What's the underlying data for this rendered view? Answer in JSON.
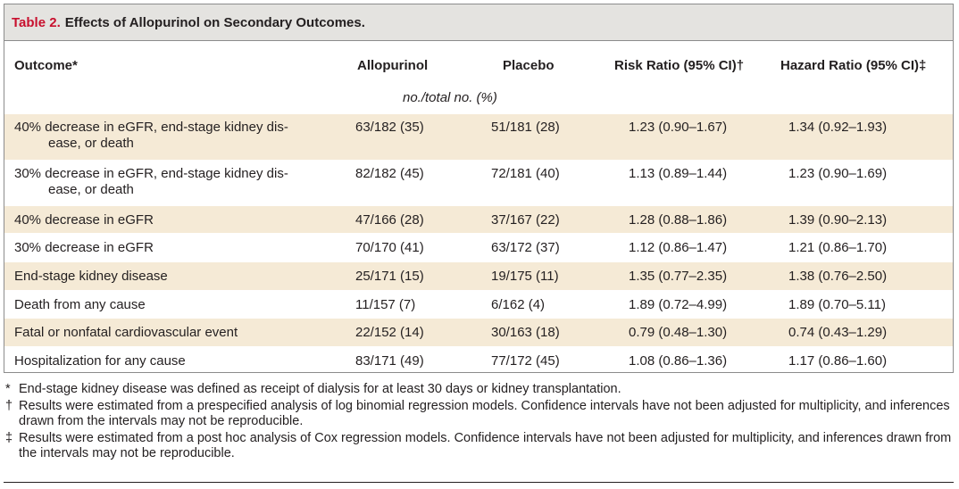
{
  "table": {
    "label": "Table 2.",
    "title": "Effects of Allopurinol on Secondary Outcomes.",
    "headers": {
      "outcome": "Outcome*",
      "allopurinol": "Allopurinol",
      "placebo": "Placebo",
      "risk_ratio": "Risk Ratio (95% CI)†",
      "hazard_ratio": "Hazard Ratio (95% CI)‡"
    },
    "units": "no./total no. (%)",
    "rows": [
      {
        "outcome_l1": "40% decrease in eGFR, end-stage kidney dis-",
        "outcome_l2": "ease, or death",
        "allopurinol": "63/182 (35)",
        "placebo": "51/181 (28)",
        "risk_ratio": "1.23 (0.90–1.67)",
        "hazard_ratio": "1.34 (0.92–1.93)"
      },
      {
        "outcome_l1": "30% decrease in eGFR, end-stage kidney dis-",
        "outcome_l2": "ease, or death",
        "allopurinol": "82/182 (45)",
        "placebo": "72/181 (40)",
        "risk_ratio": "1.13 (0.89–1.44)",
        "hazard_ratio": "1.23 (0.90–1.69)"
      },
      {
        "outcome_l1": "40% decrease in eGFR",
        "outcome_l2": "",
        "allopurinol": "47/166 (28)",
        "placebo": "37/167 (22)",
        "risk_ratio": "1.28 (0.88–1.86)",
        "hazard_ratio": "1.39 (0.90–2.13)"
      },
      {
        "outcome_l1": "30% decrease in eGFR",
        "outcome_l2": "",
        "allopurinol": "70/170 (41)",
        "placebo": "63/172 (37)",
        "risk_ratio": "1.12 (0.86–1.47)",
        "hazard_ratio": "1.21 (0.86–1.70)"
      },
      {
        "outcome_l1": "End-stage kidney disease",
        "outcome_l2": "",
        "allopurinol": "25/171 (15)",
        "placebo": "19/175 (11)",
        "risk_ratio": "1.35 (0.77–2.35)",
        "hazard_ratio": "1.38 (0.76–2.50)"
      },
      {
        "outcome_l1": "Death from any cause",
        "outcome_l2": "",
        "allopurinol": "11/157 (7)",
        "placebo": "6/162 (4)",
        "risk_ratio": "1.89 (0.72–4.99)",
        "hazard_ratio": "1.89 (0.70–5.11)"
      },
      {
        "outcome_l1": "Fatal or nonfatal cardiovascular event",
        "outcome_l2": "",
        "allopurinol": "22/152 (14)",
        "placebo": "30/163 (18)",
        "risk_ratio": "0.79 (0.48–1.30)",
        "hazard_ratio": "0.74 (0.43–1.29)"
      },
      {
        "outcome_l1": "Hospitalization for any cause",
        "outcome_l2": "",
        "allopurinol": "83/171 (49)",
        "placebo": "77/172 (45)",
        "risk_ratio": "1.08 (0.86–1.36)",
        "hazard_ratio": "1.17 (0.86–1.60)"
      }
    ]
  },
  "footnotes": [
    {
      "symbol": "*",
      "text": "End-stage kidney disease was defined as receipt of dialysis for at least 30 days or kidney transplantation."
    },
    {
      "symbol": "†",
      "text": "Results were estimated from a prespecified analysis of log binomial regression models. Confidence intervals have not been adjusted for multiplicity, and inferences drawn from the intervals may not be reproducible."
    },
    {
      "symbol": "‡",
      "text": "Results were estimated from a post hoc analysis of Cox regression models. Confidence intervals have not been adjusted for multiplicity, and inferences drawn from the intervals may not be reproducible."
    }
  ],
  "colors": {
    "label_red": "#c8102e",
    "title_bar": "#e4e3e0",
    "shaded_row": "#f5ead6"
  }
}
